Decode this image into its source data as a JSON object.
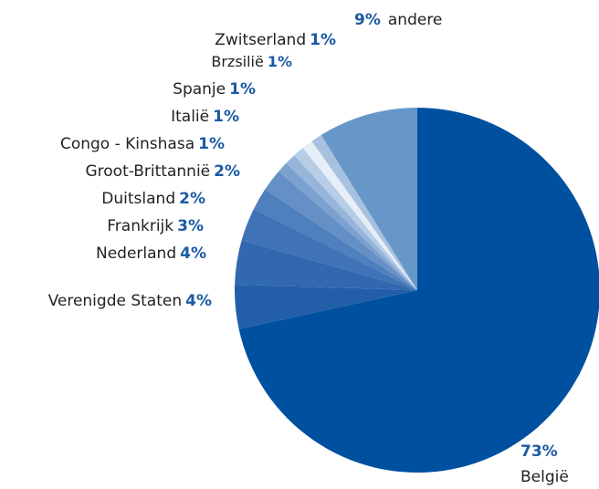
{
  "chart_data": {
    "type": "pie",
    "categories": [
      "België",
      "Verenigde Staten",
      "Nederland",
      "Frankrijk",
      "Duitsland",
      "Groot-Brittannië",
      "Congo - Kinshasa",
      "Italië",
      "Spanje",
      "Brzsilië",
      "Zwitserland",
      "andere"
    ],
    "values": [
      73,
      4,
      4,
      3,
      2,
      2,
      1,
      1,
      1,
      1,
      1,
      9
    ],
    "value_labels": [
      "73%",
      "4%",
      "4%",
      "3%",
      "2%",
      "2%",
      "1%",
      "1%",
      "1%",
      "1%",
      "1%",
      "9%"
    ],
    "colors": [
      "#0050a0",
      "#235fa9",
      "#3168b0",
      "#3f73b6",
      "#4f80be",
      "#6590c6",
      "#7ba1cf",
      "#96b5da",
      "#b7cde6",
      "#e6eef7",
      "#a7c1df",
      "#6797c9"
    ]
  }
}
